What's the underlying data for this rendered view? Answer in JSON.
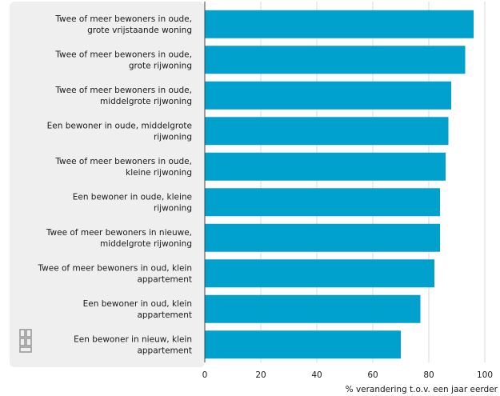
{
  "chart_data": {
    "type": "bar",
    "orientation": "horizontal",
    "categories": [
      [
        "Twee of meer bewoners in oude,",
        "grote vrijstaande woning"
      ],
      [
        "Twee of meer bewoners in oude,",
        "grote rijwoning"
      ],
      [
        "Twee of meer bewoners in oude,",
        "middelgrote rijwoning"
      ],
      [
        "Een bewoner in oude, middelgrote",
        "rijwoning"
      ],
      [
        "Twee of meer bewoners in oude,",
        "kleine rijwoning"
      ],
      [
        "Een bewoner in oude, kleine",
        "rijwoning"
      ],
      [
        "Twee of meer bewoners in nieuwe,",
        "middelgrote rijwoning"
      ],
      [
        "Twee of meer bewoners in oud, klein",
        "appartement"
      ],
      [
        "Een bewoner in oud, klein",
        "appartement"
      ],
      [
        "Een bewoner in nieuw, klein",
        "appartement"
      ]
    ],
    "values": [
      96,
      93,
      88,
      87,
      86,
      84,
      84,
      82,
      77,
      70
    ],
    "xlabel": "% verandering t.o.v. een jaar eerder",
    "xlim": [
      0,
      100
    ],
    "xticks": [
      0,
      20,
      40,
      60,
      80,
      100
    ],
    "grid": true,
    "bar_color": "#00a1cd",
    "label_panel_color": "#efefef",
    "grid_color": "#d9d9d9"
  },
  "logo": {
    "icon": "cbs-logo-icon",
    "color": "#999999"
  }
}
